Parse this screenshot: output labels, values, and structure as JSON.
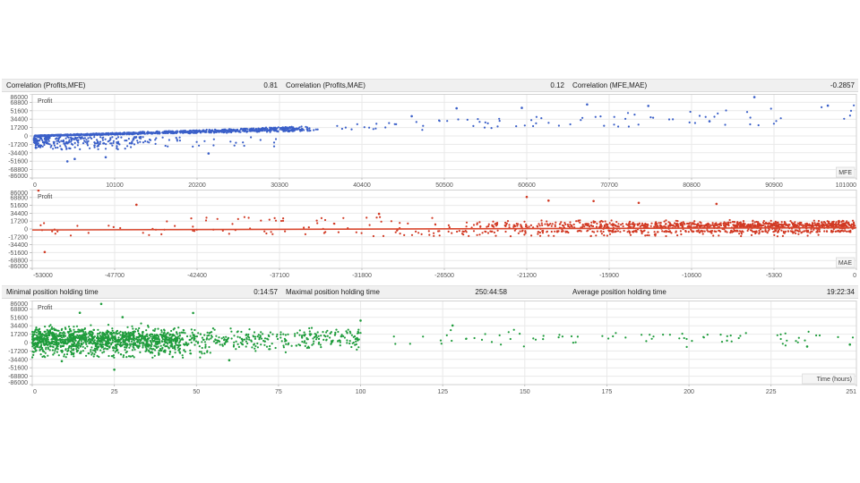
{
  "page": {
    "background": "#ffffff"
  },
  "stats_bar_1": {
    "items": [
      {
        "label": "Correlation (Profits,MFE)",
        "value": "0.81"
      },
      {
        "label": "Correlation (Profits,MAE)",
        "value": "0.12"
      },
      {
        "label": "Correlation (MFE,MAE)",
        "value": "-0.2857"
      }
    ]
  },
  "stats_bar_2": {
    "items": [
      {
        "label": "Minimal position holding time",
        "value": "0:14:57"
      },
      {
        "label": "Maximal position holding time",
        "value": "250:44:58"
      },
      {
        "label": "Average position holding time",
        "value": "19:22:34"
      }
    ]
  },
  "chart_data": [
    {
      "type": "scatter",
      "name": "profit-vs-mfe",
      "profit_label": "Profit",
      "axis_label": "MFE",
      "point_color": "#3a5fc8",
      "xlim": [
        0,
        101000
      ],
      "ylim": [
        -86000,
        86000
      ],
      "x_ticks": [
        0,
        10100,
        20200,
        30300,
        40400,
        50500,
        60600,
        70700,
        80800,
        90900,
        101000
      ],
      "y_ticks": [
        86000,
        68800,
        51600,
        34400,
        17200,
        0,
        -17200,
        -34400,
        -51600,
        -68800,
        -86000
      ],
      "seed": 11,
      "clusters": [
        {
          "n": 1050,
          "x": [
            300,
            34000
          ],
          "xbias": 1.25,
          "slope": [
            0.3,
            0.58
          ],
          "jitter": 900
        },
        {
          "n": 85,
          "x": [
            34000,
            101000
          ],
          "xbias": 1.15,
          "slope": [
            0.26,
            0.64
          ],
          "jitter": 1600
        },
        {
          "n": 185,
          "x": [
            200,
            14500
          ],
          "xbias": 1.7,
          "y": [
            -16000,
            -1800
          ]
        },
        {
          "n": 70,
          "x": [
            400,
            13000
          ],
          "xbias": 1.9,
          "y": [
            -28000,
            -15000
          ]
        },
        {
          "n": 28,
          "x": [
            14500,
            30000
          ],
          "xbias": 1.3,
          "y": [
            -22000,
            -2500
          ]
        }
      ],
      "outlier_points": [
        [
          4300,
          -52000
        ],
        [
          9000,
          -43500
        ],
        [
          21600,
          -35800
        ],
        [
          5200,
          -47000
        ],
        [
          88500,
          79500
        ],
        [
          60000,
          57500
        ],
        [
          68000,
          64500
        ],
        [
          52000,
          56500
        ],
        [
          97500,
          62000
        ],
        [
          75500,
          61500
        ],
        [
          83000,
          30000
        ],
        [
          46500,
          40500
        ]
      ],
      "trendline": null
    },
    {
      "type": "scatter",
      "name": "profit-vs-mae",
      "profit_label": "Profit",
      "axis_label": "MAE",
      "point_color": "#d13a24",
      "xlim": [
        -53000,
        0
      ],
      "ylim": [
        -86000,
        86000
      ],
      "x_ticks": [
        -53000,
        -47700,
        -42400,
        -37100,
        -31800,
        -26500,
        -21200,
        -15900,
        -10600,
        -5300,
        0
      ],
      "y_ticks": [
        86000,
        68800,
        51600,
        34400,
        17200,
        0,
        -17200,
        -34400,
        -51600,
        -68800,
        -86000
      ],
      "seed": 23,
      "clusters": [
        {
          "n": 850,
          "x": [
            -27000,
            -100
          ],
          "xbias": 0.5,
          "ymean": 8200,
          "ysd": 4300
        },
        {
          "n": 240,
          "x": [
            -30000,
            -300
          ],
          "xbias": 0.6,
          "ymean": -5200,
          "ysd": 1100
        },
        {
          "n": 70,
          "x": [
            -34000,
            -1000
          ],
          "xbias": 0.7,
          "y": [
            -16000,
            -7500
          ]
        },
        {
          "n": 60,
          "x": [
            -53000,
            -26000
          ],
          "xbias": 1.0,
          "y": [
            -14500,
            14000
          ]
        },
        {
          "n": 25,
          "x": [
            -45000,
            -26000
          ],
          "xbias": 1.0,
          "y": [
            14000,
            26000
          ]
        }
      ],
      "outlier_points": [
        [
          -52600,
          84000
        ],
        [
          -46300,
          53000
        ],
        [
          -52200,
          -50500
        ],
        [
          -21200,
          70000
        ],
        [
          -19800,
          62000
        ],
        [
          -16900,
          61000
        ],
        [
          -14000,
          57000
        ],
        [
          -9000,
          55000
        ],
        [
          -30700,
          33000
        ]
      ],
      "trendline": {
        "x1": -53000,
        "y1": -2200,
        "x2": 0,
        "y2": 2800,
        "color": "#d9472e",
        "width": 1.6
      }
    },
    {
      "type": "scatter",
      "name": "profit-vs-holding-time",
      "profit_label": "Profit",
      "axis_label": "Time (hours)",
      "point_color": "#1f9c3c",
      "xlim": [
        0,
        251
      ],
      "ylim": [
        -86000,
        86000
      ],
      "x_ticks": [
        0,
        25,
        50,
        75,
        100,
        125,
        150,
        175,
        200,
        225,
        251
      ],
      "y_ticks": [
        86000,
        68800,
        51600,
        34400,
        17200,
        0,
        -17200,
        -34400,
        -51600,
        -68800,
        -86000
      ],
      "seed": 37,
      "clusters": [
        {
          "n": 1250,
          "x": [
            0,
            45
          ],
          "xbias": 1.15,
          "ymean": 5500,
          "ysd": 11500
        },
        {
          "n": 330,
          "x": [
            45,
            100
          ],
          "xbias": 1.1,
          "ymean": 7000,
          "ysd": 10000
        },
        {
          "n": 80,
          "x": [
            100,
            251
          ],
          "xbias": 0.95,
          "ymean": 8500,
          "ysd": 7500
        },
        {
          "n": 90,
          "x": [
            0,
            55
          ],
          "xbias": 1.4,
          "y": [
            -31000,
            -15000
          ]
        }
      ],
      "outlier_points": [
        [
          21,
          79000
        ],
        [
          14.5,
          61000
        ],
        [
          27.5,
          52000
        ],
        [
          25,
          -55500
        ],
        [
          49,
          60500
        ],
        [
          9,
          -38000
        ],
        [
          60,
          -36000
        ],
        [
          100,
          45000
        ],
        [
          128,
          35000
        ],
        [
          236,
          -8000
        ],
        [
          249,
          -4000
        ]
      ],
      "trendline": null
    }
  ]
}
